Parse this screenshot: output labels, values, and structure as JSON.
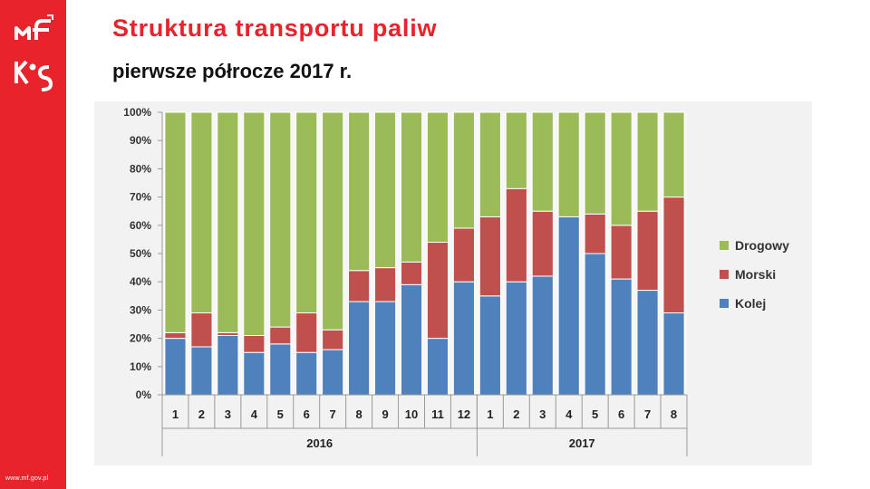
{
  "header": {
    "title": "Struktura transportu paliw",
    "subtitle": "pierwsze półrocze 2017 r."
  },
  "sidebar": {
    "logos": [
      "mf-logo",
      "kas-logo"
    ],
    "footer_url": "www.mf.gov.pl",
    "color": "#e8232b"
  },
  "chart_data": {
    "type": "bar",
    "stacked": true,
    "percent_axis": true,
    "categories": [
      "1",
      "2",
      "3",
      "4",
      "5",
      "6",
      "7",
      "8",
      "9",
      "10",
      "11",
      "12",
      "1",
      "2",
      "3",
      "4",
      "5",
      "6",
      "7",
      "8"
    ],
    "groups": [
      {
        "label": "2016",
        "count": 12
      },
      {
        "label": "2017",
        "count": 8
      }
    ],
    "series": [
      {
        "name": "Kolej",
        "color": "#4f81bd",
        "values": [
          20,
          17,
          21,
          15,
          18,
          15,
          16,
          33,
          33,
          39,
          20,
          40,
          35,
          40,
          42,
          63,
          50,
          41,
          37,
          29
        ]
      },
      {
        "name": "Morski",
        "color": "#c0504d",
        "values": [
          2,
          12,
          1,
          6,
          6,
          14,
          7,
          11,
          12,
          8,
          34,
          19,
          28,
          33,
          23,
          0,
          14,
          19,
          28,
          41
        ]
      },
      {
        "name": "Drogowy",
        "color": "#9bbb59",
        "values": [
          78,
          71,
          78,
          79,
          76,
          71,
          77,
          56,
          55,
          53,
          46,
          41,
          37,
          27,
          35,
          37,
          36,
          40,
          35,
          30
        ]
      }
    ],
    "ylim": [
      0,
      100
    ],
    "yticks": [
      "0%",
      "10%",
      "20%",
      "30%",
      "40%",
      "50%",
      "60%",
      "70%",
      "80%",
      "90%",
      "100%"
    ],
    "legend": [
      "Drogowy",
      "Morski",
      "Kolej"
    ],
    "legend_position": "right",
    "grid": false
  }
}
